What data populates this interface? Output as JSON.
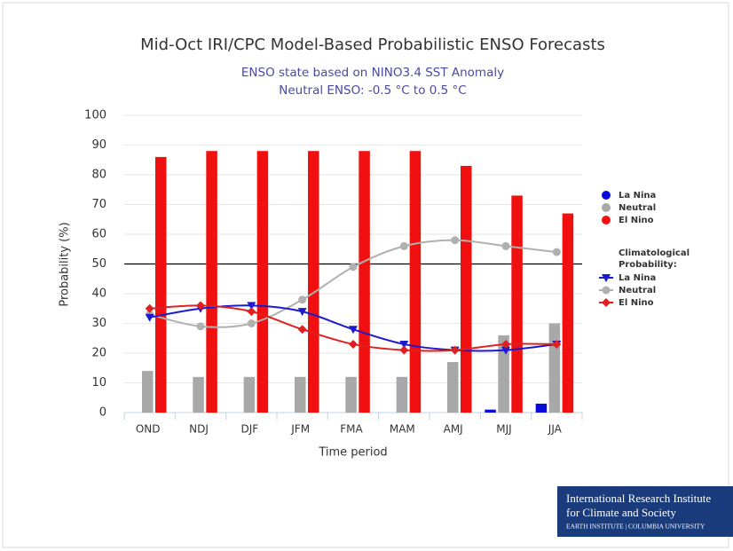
{
  "chart_data": {
    "type": "bar",
    "title": "Mid-Oct IRI/CPC Model-Based Probabilistic ENSO Forecasts",
    "subtitle": [
      "ENSO state based on NINO3.4 SST Anomaly",
      "Neutral ENSO: -0.5 °C to 0.5 °C"
    ],
    "x_label": "Time period",
    "y_label": "Probability (%)",
    "categories": [
      "OND",
      "NDJ",
      "DJF",
      "JFM",
      "FMA",
      "MAM",
      "AMJ",
      "MJJ",
      "JJA"
    ],
    "series": [
      {
        "name": "La Nina",
        "color": "#0a0ad8",
        "values": [
          0,
          0,
          0,
          0,
          0,
          0,
          0,
          1,
          3
        ]
      },
      {
        "name": "Neutral",
        "color": "#a8a8a8",
        "values": [
          14,
          12,
          12,
          12,
          12,
          12,
          17,
          26,
          30
        ]
      },
      {
        "name": "El Nino",
        "color": "#f01010",
        "values": [
          86,
          88,
          88,
          88,
          88,
          88,
          83,
          73,
          67
        ]
      }
    ],
    "climatology": {
      "title": "Climatological Probability:",
      "type": "line",
      "series": [
        {
          "name": "La Nina",
          "color": "#1a1ad0",
          "marker": "triangle-down",
          "values": [
            32,
            35,
            36,
            34,
            28,
            23,
            21,
            21,
            23
          ]
        },
        {
          "name": "Neutral",
          "color": "#b0b0b0",
          "marker": "circle",
          "values": [
            33,
            29,
            30,
            38,
            49,
            56,
            58,
            56,
            54
          ]
        },
        {
          "name": "El Nino",
          "color": "#e02020",
          "marker": "diamond",
          "values": [
            35,
            36,
            34,
            28,
            23,
            21,
            21,
            23,
            23
          ]
        }
      ]
    },
    "reference_line": 50,
    "ylim": [
      0,
      100
    ],
    "yticks": [
      0,
      10,
      20,
      30,
      40,
      50,
      60,
      70,
      80,
      90,
      100
    ],
    "grid": true,
    "legend": "right"
  },
  "logo": {
    "lines": [
      "International Research Institute",
      "for Climate and Society"
    ],
    "footer": "Earth Institute | Columbia University"
  }
}
